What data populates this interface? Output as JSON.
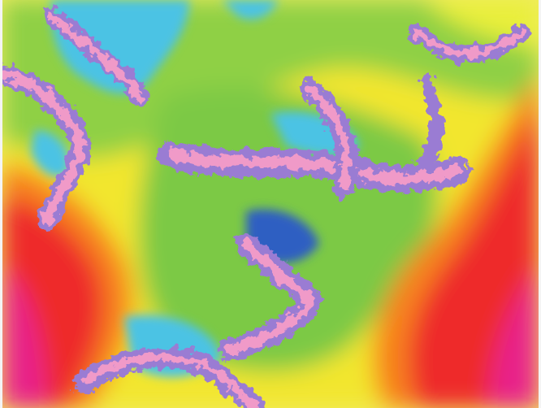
{
  "image": {
    "subject": "fractal",
    "palette": {
      "magenta": "#e8208a",
      "red": "#ee2a2a",
      "orange": "#f7821e",
      "yellow": "#f6e326",
      "lime": "#b7d832",
      "green": "#7cc945",
      "cyan": "#4cc3e4",
      "blue": "#2f5fc2",
      "violet": "#9a7bd3",
      "pink": "#f09ac8"
    }
  }
}
